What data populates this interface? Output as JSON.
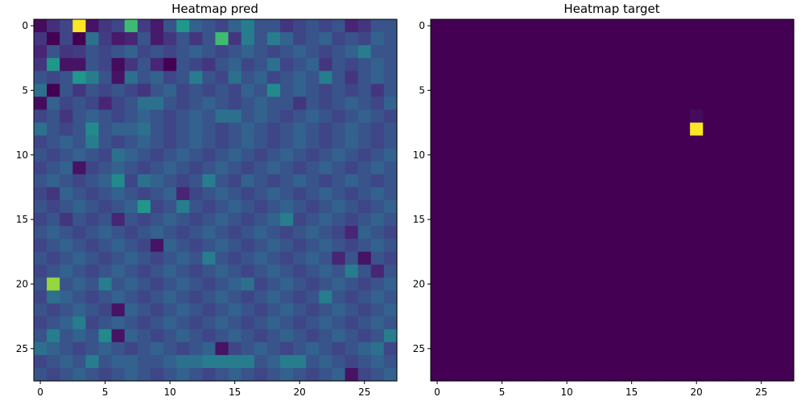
{
  "chart_data": [
    {
      "type": "heatmap",
      "title": "Heatmap pred",
      "xlabel": "",
      "ylabel": "",
      "colormap": "viridis",
      "xlim": [
        -0.5,
        27.5
      ],
      "ylim": [
        27.5,
        -0.5
      ],
      "xticks": [
        0,
        5,
        10,
        15,
        20,
        25
      ],
      "yticks": [
        0,
        5,
        10,
        15,
        20,
        25
      ],
      "grid": false,
      "shape": [
        28,
        28
      ],
      "values": [
        [
          0.08,
          0.18,
          0.25,
          1.0,
          0.1,
          0.2,
          0.25,
          0.7,
          0.22,
          0.12,
          0.3,
          0.55,
          0.35,
          0.3,
          0.25,
          0.35,
          0.45,
          0.3,
          0.3,
          0.2,
          0.25,
          0.3,
          0.25,
          0.3,
          0.15,
          0.2,
          0.3,
          0.3
        ],
        [
          0.2,
          0.05,
          0.25,
          0.05,
          0.4,
          0.22,
          0.12,
          0.15,
          0.3,
          0.12,
          0.2,
          0.3,
          0.2,
          0.3,
          0.7,
          0.2,
          0.45,
          0.3,
          0.45,
          0.35,
          0.25,
          0.3,
          0.35,
          0.25,
          0.3,
          0.25,
          0.35,
          0.3
        ],
        [
          0.15,
          0.3,
          0.2,
          0.22,
          0.3,
          0.25,
          0.3,
          0.35,
          0.25,
          0.3,
          0.25,
          0.3,
          0.35,
          0.3,
          0.25,
          0.3,
          0.35,
          0.3,
          0.25,
          0.3,
          0.35,
          0.3,
          0.25,
          0.3,
          0.35,
          0.45,
          0.3,
          0.3
        ],
        [
          0.2,
          0.55,
          0.1,
          0.1,
          0.3,
          0.25,
          0.08,
          0.2,
          0.3,
          0.15,
          0.05,
          0.3,
          0.25,
          0.2,
          0.3,
          0.35,
          0.25,
          0.3,
          0.4,
          0.25,
          0.3,
          0.35,
          0.2,
          0.3,
          0.25,
          0.3,
          0.35,
          0.3
        ],
        [
          0.3,
          0.25,
          0.3,
          0.55,
          0.45,
          0.3,
          0.1,
          0.4,
          0.3,
          0.35,
          0.25,
          0.3,
          0.45,
          0.3,
          0.25,
          0.4,
          0.3,
          0.35,
          0.25,
          0.3,
          0.35,
          0.3,
          0.45,
          0.3,
          0.2,
          0.3,
          0.35,
          0.3
        ],
        [
          0.4,
          0.05,
          0.3,
          0.2,
          0.3,
          0.25,
          0.3,
          0.25,
          0.2,
          0.3,
          0.35,
          0.25,
          0.3,
          0.25,
          0.3,
          0.25,
          0.35,
          0.3,
          0.5,
          0.3,
          0.35,
          0.3,
          0.25,
          0.3,
          0.25,
          0.3,
          0.2,
          0.3
        ],
        [
          0.08,
          0.35,
          0.25,
          0.3,
          0.25,
          0.15,
          0.25,
          0.3,
          0.4,
          0.4,
          0.3,
          0.25,
          0.3,
          0.35,
          0.3,
          0.25,
          0.3,
          0.35,
          0.3,
          0.3,
          0.2,
          0.3,
          0.25,
          0.3,
          0.35,
          0.3,
          0.25,
          0.35
        ],
        [
          0.25,
          0.3,
          0.2,
          0.3,
          0.35,
          0.3,
          0.25,
          0.3,
          0.35,
          0.3,
          0.25,
          0.3,
          0.35,
          0.3,
          0.4,
          0.4,
          0.3,
          0.35,
          0.3,
          0.25,
          0.3,
          0.35,
          0.3,
          0.25,
          0.3,
          0.35,
          0.3,
          0.25
        ],
        [
          0.4,
          0.3,
          0.25,
          0.3,
          0.5,
          0.3,
          0.35,
          0.35,
          0.4,
          0.3,
          0.25,
          0.3,
          0.35,
          0.3,
          0.25,
          0.3,
          0.35,
          0.3,
          0.25,
          0.3,
          0.35,
          0.3,
          0.25,
          0.3,
          0.35,
          0.3,
          0.25,
          0.3
        ],
        [
          0.25,
          0.3,
          0.35,
          0.3,
          0.45,
          0.3,
          0.25,
          0.3,
          0.35,
          0.3,
          0.25,
          0.3,
          0.35,
          0.3,
          0.25,
          0.3,
          0.35,
          0.3,
          0.25,
          0.3,
          0.35,
          0.3,
          0.25,
          0.3,
          0.35,
          0.3,
          0.25,
          0.3
        ],
        [
          0.3,
          0.25,
          0.3,
          0.35,
          0.3,
          0.25,
          0.4,
          0.35,
          0.3,
          0.25,
          0.3,
          0.35,
          0.3,
          0.25,
          0.3,
          0.35,
          0.3,
          0.25,
          0.3,
          0.35,
          0.3,
          0.25,
          0.3,
          0.35,
          0.3,
          0.25,
          0.3,
          0.35
        ],
        [
          0.25,
          0.3,
          0.35,
          0.1,
          0.25,
          0.3,
          0.35,
          0.3,
          0.25,
          0.3,
          0.35,
          0.3,
          0.25,
          0.3,
          0.35,
          0.3,
          0.25,
          0.3,
          0.35,
          0.3,
          0.25,
          0.3,
          0.35,
          0.3,
          0.25,
          0.3,
          0.35,
          0.3
        ],
        [
          0.3,
          0.35,
          0.3,
          0.25,
          0.3,
          0.35,
          0.5,
          0.25,
          0.4,
          0.35,
          0.3,
          0.25,
          0.3,
          0.45,
          0.3,
          0.25,
          0.35,
          0.3,
          0.25,
          0.3,
          0.35,
          0.3,
          0.25,
          0.3,
          0.35,
          0.3,
          0.25,
          0.3
        ],
        [
          0.25,
          0.2,
          0.35,
          0.3,
          0.25,
          0.3,
          0.35,
          0.3,
          0.25,
          0.3,
          0.35,
          0.15,
          0.25,
          0.3,
          0.35,
          0.3,
          0.25,
          0.3,
          0.35,
          0.3,
          0.25,
          0.3,
          0.35,
          0.3,
          0.25,
          0.3,
          0.35,
          0.3
        ],
        [
          0.3,
          0.25,
          0.3,
          0.35,
          0.3,
          0.25,
          0.3,
          0.35,
          0.55,
          0.25,
          0.3,
          0.45,
          0.3,
          0.25,
          0.3,
          0.35,
          0.3,
          0.25,
          0.3,
          0.35,
          0.3,
          0.25,
          0.3,
          0.35,
          0.3,
          0.25,
          0.3,
          0.35
        ],
        [
          0.25,
          0.3,
          0.2,
          0.3,
          0.25,
          0.3,
          0.15,
          0.3,
          0.25,
          0.3,
          0.35,
          0.3,
          0.25,
          0.3,
          0.35,
          0.3,
          0.25,
          0.3,
          0.35,
          0.45,
          0.25,
          0.3,
          0.35,
          0.3,
          0.25,
          0.3,
          0.35,
          0.3
        ],
        [
          0.3,
          0.35,
          0.3,
          0.25,
          0.3,
          0.35,
          0.3,
          0.25,
          0.3,
          0.35,
          0.3,
          0.25,
          0.3,
          0.35,
          0.3,
          0.25,
          0.3,
          0.35,
          0.3,
          0.25,
          0.3,
          0.35,
          0.3,
          0.25,
          0.15,
          0.35,
          0.3,
          0.25
        ],
        [
          0.25,
          0.3,
          0.35,
          0.3,
          0.25,
          0.3,
          0.35,
          0.3,
          0.25,
          0.1,
          0.35,
          0.3,
          0.25,
          0.3,
          0.35,
          0.3,
          0.25,
          0.3,
          0.35,
          0.3,
          0.25,
          0.3,
          0.35,
          0.3,
          0.25,
          0.3,
          0.35,
          0.3
        ],
        [
          0.3,
          0.25,
          0.3,
          0.35,
          0.3,
          0.25,
          0.3,
          0.35,
          0.3,
          0.25,
          0.3,
          0.35,
          0.3,
          0.45,
          0.3,
          0.25,
          0.3,
          0.35,
          0.3,
          0.25,
          0.3,
          0.35,
          0.3,
          0.15,
          0.3,
          0.1,
          0.3,
          0.25
        ],
        [
          0.25,
          0.3,
          0.35,
          0.3,
          0.25,
          0.3,
          0.35,
          0.3,
          0.25,
          0.3,
          0.35,
          0.3,
          0.25,
          0.3,
          0.35,
          0.3,
          0.25,
          0.3,
          0.35,
          0.3,
          0.25,
          0.3,
          0.35,
          0.3,
          0.45,
          0.3,
          0.15,
          0.3
        ],
        [
          0.3,
          0.85,
          0.3,
          0.35,
          0.3,
          0.45,
          0.3,
          0.35,
          0.3,
          0.25,
          0.3,
          0.35,
          0.3,
          0.25,
          0.3,
          0.35,
          0.4,
          0.25,
          0.3,
          0.35,
          0.3,
          0.25,
          0.3,
          0.35,
          0.3,
          0.25,
          0.3,
          0.35
        ],
        [
          0.25,
          0.4,
          0.35,
          0.3,
          0.25,
          0.3,
          0.35,
          0.3,
          0.25,
          0.3,
          0.35,
          0.3,
          0.25,
          0.3,
          0.35,
          0.3,
          0.25,
          0.3,
          0.35,
          0.3,
          0.25,
          0.3,
          0.45,
          0.3,
          0.25,
          0.3,
          0.35,
          0.3
        ],
        [
          0.3,
          0.25,
          0.3,
          0.35,
          0.3,
          0.25,
          0.1,
          0.35,
          0.3,
          0.25,
          0.3,
          0.35,
          0.3,
          0.25,
          0.3,
          0.35,
          0.3,
          0.25,
          0.3,
          0.35,
          0.3,
          0.25,
          0.3,
          0.35,
          0.3,
          0.25,
          0.3,
          0.35
        ],
        [
          0.25,
          0.3,
          0.35,
          0.45,
          0.25,
          0.3,
          0.35,
          0.3,
          0.25,
          0.3,
          0.35,
          0.3,
          0.25,
          0.3,
          0.35,
          0.3,
          0.25,
          0.3,
          0.35,
          0.3,
          0.25,
          0.3,
          0.35,
          0.3,
          0.25,
          0.3,
          0.35,
          0.3
        ],
        [
          0.3,
          0.45,
          0.3,
          0.35,
          0.3,
          0.5,
          0.1,
          0.35,
          0.3,
          0.25,
          0.3,
          0.35,
          0.3,
          0.25,
          0.3,
          0.35,
          0.3,
          0.25,
          0.3,
          0.35,
          0.3,
          0.25,
          0.3,
          0.35,
          0.3,
          0.25,
          0.3,
          0.45
        ],
        [
          0.4,
          0.35,
          0.3,
          0.25,
          0.3,
          0.35,
          0.3,
          0.25,
          0.3,
          0.35,
          0.3,
          0.25,
          0.3,
          0.35,
          0.1,
          0.25,
          0.3,
          0.35,
          0.3,
          0.25,
          0.3,
          0.35,
          0.3,
          0.25,
          0.3,
          0.35,
          0.4,
          0.25
        ],
        [
          0.25,
          0.3,
          0.35,
          0.3,
          0.45,
          0.3,
          0.35,
          0.35,
          0.3,
          0.3,
          0.35,
          0.4,
          0.4,
          0.45,
          0.45,
          0.45,
          0.45,
          0.3,
          0.35,
          0.45,
          0.45,
          0.3,
          0.35,
          0.3,
          0.25,
          0.3,
          0.35,
          0.3
        ],
        [
          0.3,
          0.25,
          0.3,
          0.35,
          0.3,
          0.25,
          0.3,
          0.35,
          0.3,
          0.25,
          0.3,
          0.35,
          0.3,
          0.25,
          0.3,
          0.35,
          0.3,
          0.25,
          0.3,
          0.35,
          0.3,
          0.25,
          0.3,
          0.35,
          0.1,
          0.25,
          0.3,
          0.35
        ]
      ]
    },
    {
      "type": "heatmap",
      "title": "Heatmap target",
      "xlabel": "",
      "ylabel": "",
      "colormap": "viridis",
      "xlim": [
        -0.5,
        27.5
      ],
      "ylim": [
        27.5,
        -0.5
      ],
      "xticks": [
        0,
        5,
        10,
        15,
        20,
        25
      ],
      "yticks": [
        0,
        5,
        10,
        15,
        20,
        25
      ],
      "grid": false,
      "shape": [
        28,
        28
      ],
      "background_value": 0.0,
      "cells": [
        {
          "row": 7,
          "col": 20,
          "value": 0.03
        },
        {
          "row": 8,
          "col": 20,
          "value": 1.0
        }
      ]
    }
  ]
}
